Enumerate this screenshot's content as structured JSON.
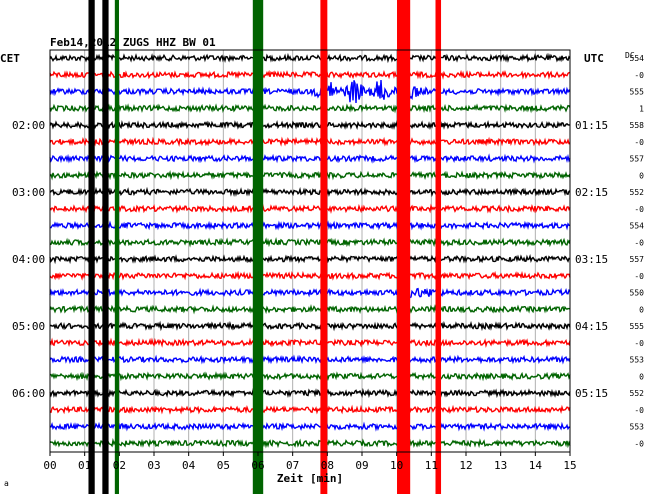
{
  "chart_data": {
    "type": "line",
    "title": "Feb14,2012  ZUGS HHZ BW 01",
    "xlabel": "Zeit [min]",
    "left_tz": "CET",
    "right_tz": "UTC",
    "dc_header": "DC",
    "x_ticks": [
      "00",
      "01",
      "02",
      "03",
      "04",
      "05",
      "06",
      "07",
      "08",
      "09",
      "10",
      "11",
      "12",
      "13",
      "14",
      "15"
    ],
    "xlim": [
      0,
      15
    ],
    "left_time_labels": [
      {
        "trace": 4,
        "text": "02:00"
      },
      {
        "trace": 8,
        "text": "03:00"
      },
      {
        "trace": 12,
        "text": "04:00"
      },
      {
        "trace": 16,
        "text": "05:00"
      },
      {
        "trace": 20,
        "text": "06:00"
      }
    ],
    "right_time_labels": [
      {
        "trace": 4,
        "text": "01:15"
      },
      {
        "trace": 8,
        "text": "02:15"
      },
      {
        "trace": 12,
        "text": "03:15"
      },
      {
        "trace": 16,
        "text": "04:15"
      },
      {
        "trace": 20,
        "text": "05:15"
      }
    ],
    "trace_count": 24,
    "trace_colors": [
      "#000000",
      "#ff0000",
      "#0000ff",
      "#006400"
    ],
    "dc_values": [
      "554",
      "-0",
      "555",
      "1",
      "558",
      "-0",
      "557",
      "0",
      "552",
      "-0",
      "554",
      "-0",
      "557",
      "-0",
      "550",
      "0",
      "555",
      "-0",
      "553",
      "0",
      "552",
      "-0",
      "553",
      "-0"
    ],
    "bursts": [
      {
        "trace": 2,
        "from": 7.6,
        "to": 10.9,
        "amp": 1.0
      },
      {
        "trace": 14,
        "from": 10.2,
        "to": 11.4,
        "amp": 0.4
      }
    ],
    "vertical_bands": [
      {
        "x": 1.2,
        "width": 0.18,
        "color": "#000000"
      },
      {
        "x": 1.6,
        "width": 0.18,
        "color": "#000000"
      },
      {
        "x": 1.93,
        "width": 0.12,
        "color": "#006400"
      },
      {
        "x": 6.0,
        "width": 0.3,
        "color": "#006400"
      },
      {
        "x": 7.9,
        "width": 0.2,
        "color": "#ff0000"
      },
      {
        "x": 10.2,
        "width": 0.38,
        "color": "#ff0000"
      },
      {
        "x": 11.2,
        "width": 0.16,
        "color": "#ff0000"
      }
    ],
    "grid": true
  },
  "footer_mark": "a"
}
